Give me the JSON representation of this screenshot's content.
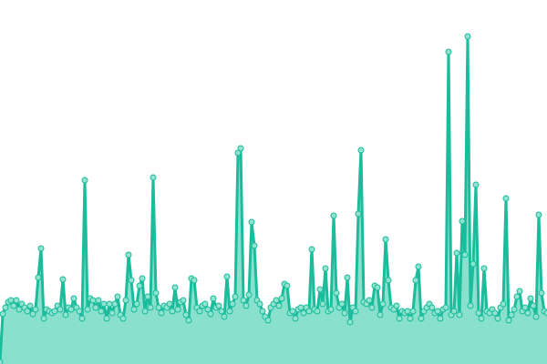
{
  "chart_data": {
    "type": "area",
    "title": "",
    "xlabel": "",
    "ylabel": "",
    "grid": false,
    "legend": "none",
    "markers": true,
    "xlim": [
      0,
      200
    ],
    "ylim": [
      0,
      400
    ],
    "colors": {
      "line": "#1abc9c",
      "fill": "#88e0cd",
      "marker_fill": "#8fe3cf",
      "marker_stroke": "#1abc9c"
    },
    "series": [
      {
        "values": [
          2,
          55,
          62,
          68,
          70,
          64,
          70,
          60,
          66,
          62,
          58,
          64,
          55,
          60,
          95,
          127,
          50,
          60,
          58,
          56,
          58,
          64,
          60,
          93,
          54,
          62,
          60,
          72,
          62,
          58,
          50,
          202,
          60,
          72,
          70,
          62,
          70,
          58,
          66,
          50,
          66,
          56,
          66,
          74,
          54,
          50,
          70,
          120,
          92,
          60,
          66,
          86,
          94,
          58,
          74,
          62,
          205,
          78,
          62,
          56,
          64,
          62,
          66,
          58,
          84,
          60,
          68,
          70,
          54,
          48,
          94,
          92,
          62,
          58,
          64,
          66,
          60,
          55,
          72,
          62,
          64,
          58,
          52,
          96,
          58,
          66,
          74,
          232,
          237,
          70,
          64,
          76,
          156,
          130,
          70,
          66,
          58,
          52,
          48,
          62,
          66,
          70,
          64,
          72,
          88,
          86,
          56,
          58,
          50,
          60,
          62,
          56,
          62,
          58,
          126,
          60,
          58,
          82,
          66,
          105,
          58,
          60,
          163,
          78,
          62,
          66,
          56,
          95,
          46,
          62,
          58,
          165,
          235,
          68,
          66,
          70,
          62,
          86,
          84,
          54,
          66,
          137,
          92,
          62,
          60,
          64,
          50,
          58,
          56,
          58,
          50,
          58,
          92,
          107,
          50,
          58,
          62,
          66,
          62,
          56,
          58,
          50,
          60,
          62,
          343,
          54,
          58,
          122,
          54,
          157,
          120,
          360,
          64,
          110,
          197,
          56,
          50,
          105,
          58,
          56,
          60,
          56,
          50,
          62,
          66,
          182,
          48,
          54,
          60,
          74,
          80,
          58,
          62,
          56,
          72,
          64,
          52,
          164,
          78,
          58,
          56
        ]
      }
    ]
  }
}
